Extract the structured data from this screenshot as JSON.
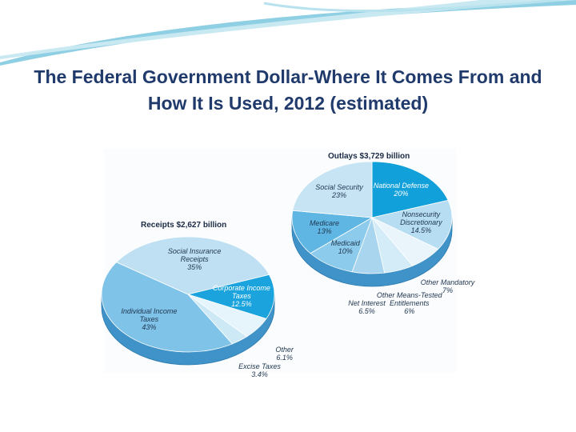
{
  "slide": {
    "title": "The Federal Government Dollar-Where It Comes From and How It Is Used, 2012 (estimated)"
  },
  "chart_data": [
    {
      "type": "pie",
      "title": "Receipts $2,627 billion",
      "categories": [
        "Social Insurance Receipts",
        "Corporate Income Taxes",
        "Other",
        "Excise Taxes",
        "Individual Income Taxes"
      ],
      "values": [
        35,
        12.5,
        6.1,
        3.4,
        43
      ],
      "value_labels": [
        "35%",
        "12.5%",
        "6.1%",
        "3.4%",
        "43%"
      ],
      "colors": [
        "#bfe0f2",
        "#1aa3dc",
        "#e6f4fb",
        "#cde9f6",
        "#7fc3e8"
      ]
    },
    {
      "type": "pie",
      "title": "Outlays $3,729 billion",
      "categories": [
        "National Defense",
        "Nonsecurity Discretionary",
        "Other Mandatory",
        "Other Means-Tested Entitlements",
        "Net Interest",
        "Medicaid",
        "Medicare",
        "Social Security"
      ],
      "values": [
        20,
        14.5,
        7,
        6,
        6.5,
        10,
        13,
        23
      ],
      "value_labels": [
        "20%",
        "14.5%",
        "7%",
        "6%",
        "6.5%",
        "10%",
        "13%",
        "23%"
      ],
      "colors": [
        "#12a0da",
        "#b6ddf1",
        "#e9f5fb",
        "#d3ecf8",
        "#a9d6ee",
        "#8ccbeb",
        "#5fb6e3",
        "#c6e4f4"
      ]
    }
  ]
}
